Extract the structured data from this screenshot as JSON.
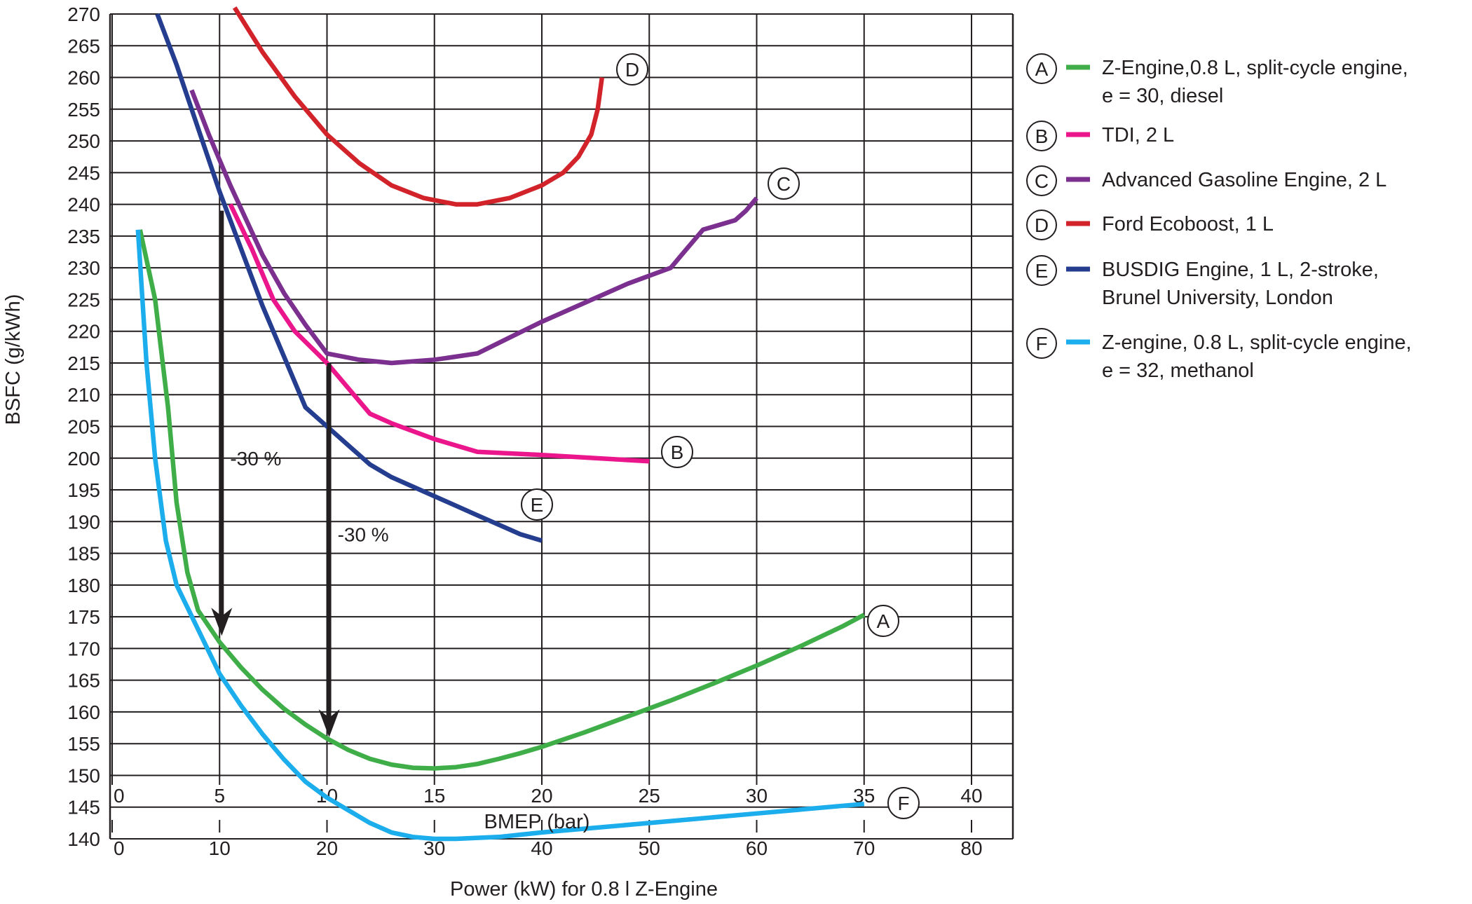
{
  "chart_data": {
    "type": "line",
    "title": "",
    "ylabel": "BSFC (g/kWh)",
    "xlabel_bmep": "BMEP (bar)",
    "xlabel_power": "Power (kW) for 0.8 l Z-Engine",
    "ylim": [
      140,
      270
    ],
    "xlim_bmep": [
      0,
      42
    ],
    "y_ticks": [
      140,
      145,
      150,
      155,
      160,
      165,
      170,
      175,
      180,
      185,
      190,
      195,
      200,
      205,
      210,
      215,
      220,
      225,
      230,
      235,
      240,
      245,
      250,
      255,
      260,
      265,
      270
    ],
    "bmep_ticks": [
      0,
      5,
      10,
      15,
      20,
      25,
      30,
      35,
      40
    ],
    "power_ticks": [
      0,
      10,
      20,
      30,
      40,
      50,
      60,
      70,
      80
    ],
    "grid": true,
    "legend_position": "right",
    "series": [
      {
        "key": "A",
        "legend_lines": [
          "Z-Engine,0.8 L, split-cycle engine,",
          "e = 30, diesel"
        ],
        "color": "#3fae49",
        "points": [
          [
            1.3,
            236
          ],
          [
            2,
            225
          ],
          [
            2.6,
            208
          ],
          [
            3,
            193
          ],
          [
            3.5,
            182
          ],
          [
            4,
            176
          ],
          [
            5,
            171
          ],
          [
            6,
            167
          ],
          [
            7,
            163.5
          ],
          [
            8,
            160.5
          ],
          [
            9,
            158
          ],
          [
            10,
            155.8
          ],
          [
            11,
            154
          ],
          [
            12,
            152.6
          ],
          [
            13,
            151.7
          ],
          [
            14,
            151.2
          ],
          [
            15,
            151.1
          ],
          [
            16,
            151.3
          ],
          [
            17,
            151.8
          ],
          [
            18,
            152.6
          ],
          [
            19,
            153.5
          ],
          [
            20,
            154.5
          ],
          [
            22,
            156.8
          ],
          [
            24,
            159.3
          ],
          [
            26,
            161.8
          ],
          [
            28,
            164.5
          ],
          [
            30,
            167.3
          ],
          [
            32,
            170.3
          ],
          [
            34,
            173.5
          ],
          [
            35,
            175.3
          ]
        ]
      },
      {
        "key": "B",
        "legend_lines": [
          "TDI, 2 L"
        ],
        "color": "#ec168c",
        "points": [
          [
            5.5,
            240
          ],
          [
            6.5,
            233
          ],
          [
            7.5,
            225
          ],
          [
            8.5,
            220
          ],
          [
            10,
            215
          ],
          [
            11,
            211
          ],
          [
            12,
            207
          ],
          [
            13,
            205.5
          ],
          [
            15,
            203
          ],
          [
            17,
            201
          ],
          [
            20,
            200.5
          ],
          [
            25,
            199.5
          ]
        ]
      },
      {
        "key": "C",
        "legend_lines": [
          "Advanced Gasoline Engine, 2 L"
        ],
        "color": "#7b2f8e",
        "points": [
          [
            3.7,
            258
          ],
          [
            4.5,
            251
          ],
          [
            5.5,
            243
          ],
          [
            7,
            232
          ],
          [
            8,
            226
          ],
          [
            9,
            221
          ],
          [
            10,
            216.5
          ],
          [
            11.5,
            215.5
          ],
          [
            13,
            215
          ],
          [
            15,
            215.5
          ],
          [
            17,
            216.5
          ],
          [
            18.5,
            219
          ],
          [
            20,
            221.5
          ],
          [
            22,
            224.5
          ],
          [
            24,
            227.5
          ],
          [
            26,
            230
          ],
          [
            26.5,
            232
          ],
          [
            27.5,
            236
          ],
          [
            29,
            237.5
          ],
          [
            29.5,
            239
          ],
          [
            30,
            241
          ]
        ]
      },
      {
        "key": "D",
        "legend_lines": [
          "Ford Ecoboost, 1 L"
        ],
        "color": "#d2232a",
        "points": [
          [
            5.7,
            271
          ],
          [
            7,
            264
          ],
          [
            8.5,
            257
          ],
          [
            10,
            251
          ],
          [
            11.5,
            246.5
          ],
          [
            13,
            243
          ],
          [
            14.5,
            241
          ],
          [
            16,
            240
          ],
          [
            17,
            240
          ],
          [
            18.5,
            241
          ],
          [
            20,
            243
          ],
          [
            21,
            245
          ],
          [
            21.7,
            247.5
          ],
          [
            22.3,
            251
          ],
          [
            22.6,
            255
          ],
          [
            22.8,
            260
          ]
        ]
      },
      {
        "key": "E",
        "legend_lines": [
          "BUSDIG Engine, 1 L, 2-stroke,",
          "Brunel University, London"
        ],
        "color": "#253d8f",
        "points": [
          [
            2.1,
            270
          ],
          [
            3,
            262
          ],
          [
            4,
            252
          ],
          [
            5,
            242
          ],
          [
            6,
            233
          ],
          [
            7,
            224
          ],
          [
            8,
            216
          ],
          [
            9,
            208
          ],
          [
            10,
            205
          ],
          [
            11,
            202
          ],
          [
            12,
            199
          ],
          [
            13,
            197
          ],
          [
            15,
            194
          ],
          [
            17,
            191
          ],
          [
            19,
            188
          ],
          [
            20,
            187
          ]
        ]
      },
      {
        "key": "F",
        "legend_lines": [
          "Z-engine, 0.8 L, split-cycle engine,",
          "e = 32, methanol"
        ],
        "color": "#1badec",
        "points": [
          [
            1.2,
            236
          ],
          [
            1.6,
            215
          ],
          [
            2,
            200
          ],
          [
            2.5,
            187
          ],
          [
            3,
            180
          ],
          [
            4,
            173
          ],
          [
            5,
            166
          ],
          [
            6,
            161
          ],
          [
            7,
            156.5
          ],
          [
            8,
            152.5
          ],
          [
            9,
            149
          ],
          [
            10,
            146.5
          ],
          [
            11,
            144.5
          ],
          [
            12,
            142.5
          ],
          [
            13,
            141
          ],
          [
            14,
            140.3
          ],
          [
            15,
            140
          ],
          [
            16,
            140
          ],
          [
            18,
            140.3
          ],
          [
            20,
            141
          ],
          [
            25,
            142.5
          ],
          [
            30,
            144
          ],
          [
            35,
            145.5
          ]
        ]
      }
    ],
    "annotations": [
      {
        "text": "-30 %",
        "x": 5.1,
        "y": 200,
        "from_y": 239,
        "to_y": 172
      },
      {
        "text": "-30 %",
        "x": 10.1,
        "y": 188,
        "from_y": 215,
        "to_y": 156
      }
    ]
  }
}
